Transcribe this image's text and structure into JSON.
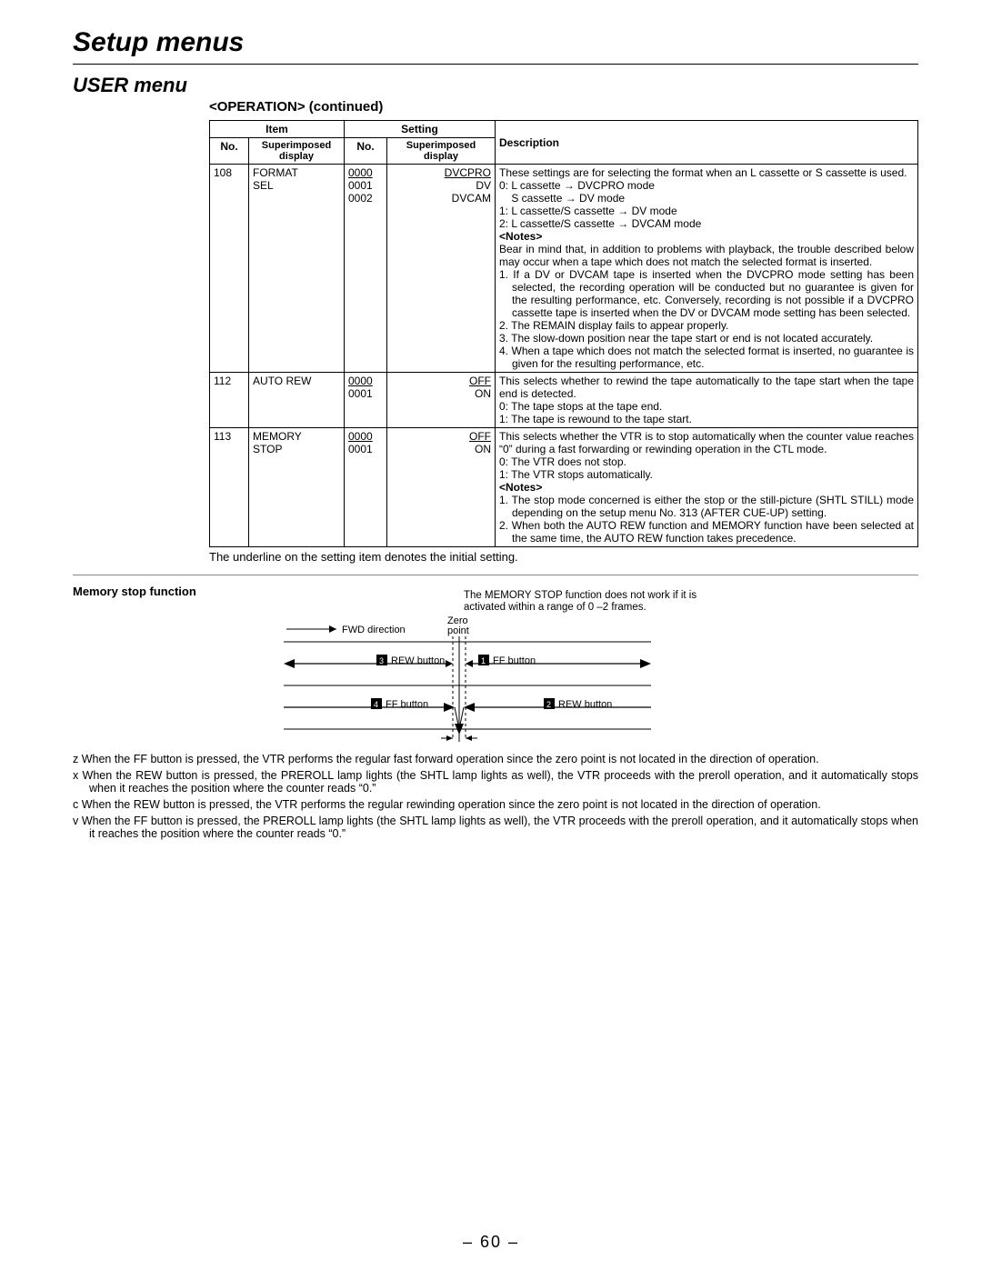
{
  "headings": {
    "h1": "Setup menus",
    "h2": "USER menu",
    "h3": "<OPERATION> (continued)"
  },
  "table": {
    "hdr": {
      "item": "Item",
      "setting": "Setting",
      "desc": "Description",
      "no": "No.",
      "sup": "Superimposed\ndisplay"
    },
    "rows": [
      {
        "no": "108",
        "item": "FORMAT\nSEL",
        "snos": [
          "0000",
          "0001",
          "0002"
        ],
        "sno_underlined": [
          true,
          false,
          false
        ],
        "ssups": [
          "DVCPRO",
          "DV",
          "DVCAM"
        ],
        "ssup_underlined": [
          true,
          false,
          false
        ],
        "desc": {
          "lead": "These settings are for selecting the format when an L cassette or S cassette is used.",
          "lines": [
            "0: L cassette → DVCPRO mode",
            "    S cassette → DV mode",
            "1: L cassette/S cassette → DV mode",
            "2: L cassette/S cassette → DVCAM mode"
          ],
          "notes_label": "<Notes>",
          "notes_intro": "Bear in mind that, in addition to problems with playback, the trouble described below may occur when a tape which does not match the selected format is inserted.",
          "notes": [
            "If a DV or DVCAM tape is inserted when the DVCPRO mode setting has been selected, the recording operation will be conducted but no guarantee is given for the resulting performance, etc. Conversely, recording is not possible if a DVCPRO cassette tape is inserted when the DV or DVCAM mode setting has been selected.",
            "The REMAIN display fails to appear properly.",
            "The slow-down position near the tape start or end is not located accurately.",
            "When a tape which does not match the selected format is inserted, no guarantee is given for the resulting perform­ance, etc."
          ]
        }
      },
      {
        "no": "112",
        "item": "AUTO REW",
        "snos": [
          "0000",
          "0001"
        ],
        "sno_underlined": [
          true,
          false
        ],
        "ssups": [
          "OFF",
          "ON"
        ],
        "ssup_underlined": [
          true,
          false
        ],
        "desc": {
          "lead": "This selects whether to rewind the tape automatically to the tape start when the tape end is detected.",
          "lines": [
            "0: The tape stops at the tape end.",
            "1: The tape is rewound to the tape start."
          ]
        }
      },
      {
        "no": "113",
        "item": "MEMORY\nSTOP",
        "snos": [
          "0000",
          "0001"
        ],
        "sno_underlined": [
          true,
          false
        ],
        "ssups": [
          "OFF",
          "ON"
        ],
        "ssup_underlined": [
          true,
          false
        ],
        "desc": {
          "lead": "This selects whether the VTR is to stop automatically when the counter value reaches “0” during a fast forwarding or rewinding operation in the CTL mode.",
          "lines": [
            "0: The VTR does not stop.",
            "1: The VTR stops automatically."
          ],
          "notes_label": "<Notes>",
          "notes": [
            "The stop mode concerned is either the stop or the still-picture (SHTL STILL) mode depending on the setup menu No. 313 (AFTER CUE-UP) setting.",
            "When both the AUTO REW function and MEMORY function have been selected at the same time, the AUTO REW function takes precedence."
          ]
        }
      }
    ]
  },
  "footnote": "The underline on the setting item denotes the initial setting.",
  "memory": {
    "heading": "Memory stop function",
    "note": "The MEMORY STOP function does not work if it is activated within a range of 0 –2 frames.",
    "labels": {
      "fwd": "FWD direction",
      "zero": "Zero\npoint",
      "rew_btn": "REW button",
      "ff_btn": "FF button",
      "n1": "1",
      "n2": "2",
      "n3": "3",
      "n4": "4"
    },
    "list": [
      {
        "k": "z",
        "t": "When the FF button is pressed, the VTR performs the regular fast forward operation since the zero point is not located in the direction of operation."
      },
      {
        "k": "x",
        "t": "When the REW button is pressed, the PREROLL lamp lights (the SHTL lamp lights as well), the VTR proceeds with the preroll operation, and it automatically stops when it reaches the position where the counter reads “0.”"
      },
      {
        "k": "c",
        "t": "When the REW button is pressed, the VTR performs the regular rewinding operation since the zero point is not located in the direction of operation."
      },
      {
        "k": "v",
        "t": "When the FF button is pressed, the PREROLL lamp lights (the SHTL lamp lights as well), the VTR proceeds with the preroll operation, and it automatically stops when it reaches the position where the counter reads “0.”"
      }
    ]
  },
  "page_number": "– 60 –"
}
